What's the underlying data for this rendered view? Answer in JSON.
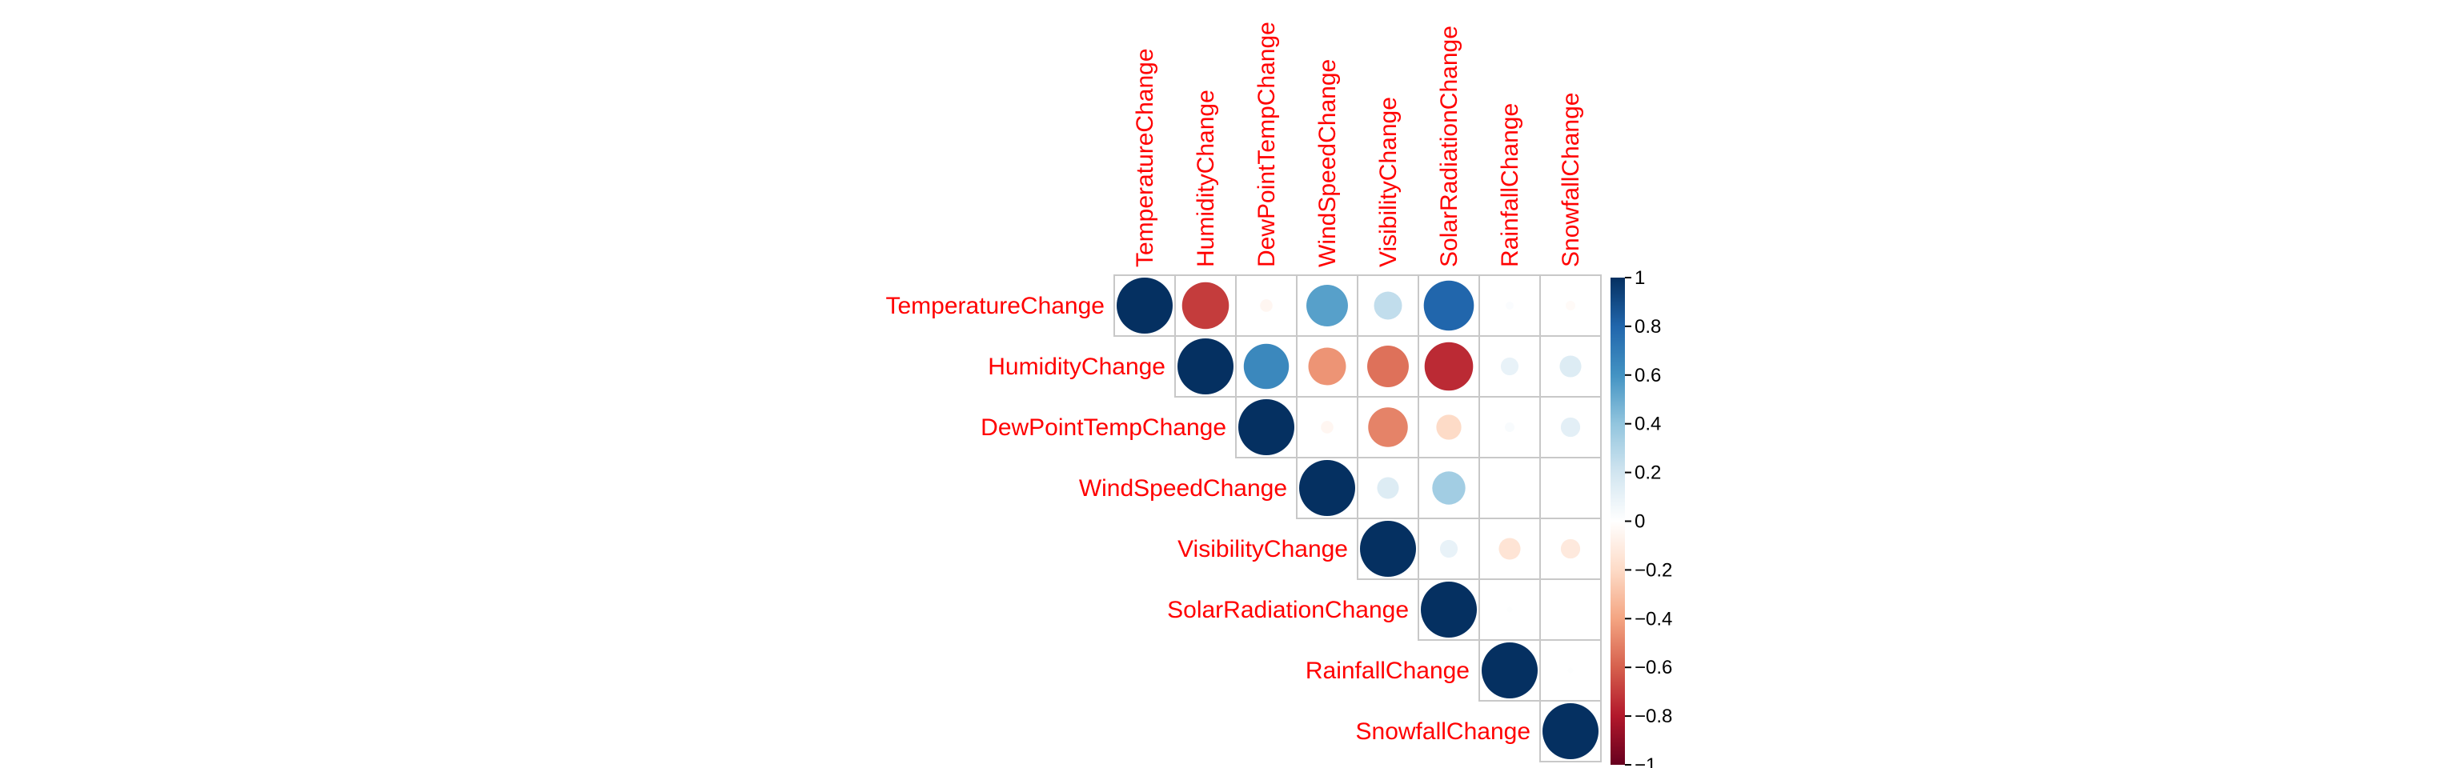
{
  "chart_data": {
    "type": "heatmap",
    "variables": [
      "TemperatureChange",
      "HumidityChange",
      "DewPointTempChange",
      "WindSpeedChange",
      "VisibilityChange",
      "SolarRadiationChange",
      "RainfallChange",
      "SnowfallChange"
    ],
    "matrix": [
      [
        1.0,
        -0.7,
        -0.05,
        0.55,
        0.25,
        0.8,
        0.02,
        -0.03
      ],
      [
        null,
        1.0,
        0.65,
        -0.45,
        -0.55,
        -0.75,
        0.1,
        0.15
      ],
      [
        null,
        null,
        1.0,
        -0.05,
        -0.5,
        -0.2,
        0.03,
        0.12
      ],
      [
        null,
        null,
        null,
        1.0,
        0.15,
        0.35,
        0.0,
        0.0
      ],
      [
        null,
        null,
        null,
        null,
        1.0,
        0.1,
        -0.15,
        -0.12
      ],
      [
        null,
        null,
        null,
        null,
        null,
        1.0,
        0.01,
        0.0
      ],
      [
        null,
        null,
        null,
        null,
        null,
        null,
        1.0,
        0.01
      ],
      [
        null,
        null,
        null,
        null,
        null,
        null,
        null,
        1.0
      ]
    ],
    "layout": "upper-triangle",
    "method": "circle",
    "colorbar": {
      "range": [
        -1,
        1
      ],
      "ticks": [
        "1",
        "0.8",
        "0.6",
        "0.4",
        "0.2",
        "0",
        "−0.2",
        "−0.4",
        "−0.6",
        "−0.8",
        "−1"
      ],
      "placement": "right",
      "colors": {
        "neg_strong": "#67001f",
        "neg_mid": "#d6604d",
        "neg_light": "#fddbc7",
        "zero": "#ffffff",
        "pos_light": "#d1e5f0",
        "pos_mid": "#4393c3",
        "pos_strong": "#053061"
      }
    },
    "label_color": "#ff0000"
  }
}
